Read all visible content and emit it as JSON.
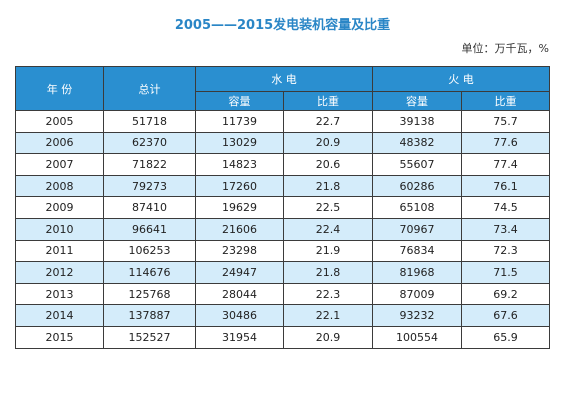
{
  "title": "2005——2015发电装机容量及比重",
  "unit": "单位：万千瓦，%",
  "header": {
    "year": "年 份",
    "total": "总计",
    "hydro": "水 电",
    "thermal": "火 电",
    "capacity": "容量",
    "ratio": "比重"
  },
  "rows": [
    {
      "year": "2005",
      "total": "51718",
      "hydro_cap": "11739",
      "hydro_ratio": "22.7",
      "thermal_cap": "39138",
      "thermal_ratio": "75.7"
    },
    {
      "year": "2006",
      "total": "62370",
      "hydro_cap": "13029",
      "hydro_ratio": "20.9",
      "thermal_cap": "48382",
      "thermal_ratio": "77.6"
    },
    {
      "year": "2007",
      "total": "71822",
      "hydro_cap": "14823",
      "hydro_ratio": "20.6",
      "thermal_cap": "55607",
      "thermal_ratio": "77.4"
    },
    {
      "year": "2008",
      "total": "79273",
      "hydro_cap": "17260",
      "hydro_ratio": "21.8",
      "thermal_cap": "60286",
      "thermal_ratio": "76.1"
    },
    {
      "year": "2009",
      "total": "87410",
      "hydro_cap": "19629",
      "hydro_ratio": "22.5",
      "thermal_cap": "65108",
      "thermal_ratio": "74.5"
    },
    {
      "year": "2010",
      "total": "96641",
      "hydro_cap": "21606",
      "hydro_ratio": "22.4",
      "thermal_cap": "70967",
      "thermal_ratio": "73.4"
    },
    {
      "year": "2011",
      "total": "106253",
      "hydro_cap": "23298",
      "hydro_ratio": "21.9",
      "thermal_cap": "76834",
      "thermal_ratio": "72.3"
    },
    {
      "year": "2012",
      "total": "114676",
      "hydro_cap": "24947",
      "hydro_ratio": "21.8",
      "thermal_cap": "81968",
      "thermal_ratio": "71.5"
    },
    {
      "year": "2013",
      "total": "125768",
      "hydro_cap": "28044",
      "hydro_ratio": "22.3",
      "thermal_cap": "87009",
      "thermal_ratio": "69.2"
    },
    {
      "year": "2014",
      "total": "137887",
      "hydro_cap": "30486",
      "hydro_ratio": "22.1",
      "thermal_cap": "93232",
      "thermal_ratio": "67.6"
    },
    {
      "year": "2015",
      "total": "152527",
      "hydro_cap": "31954",
      "hydro_ratio": "20.9",
      "thermal_cap": "100554",
      "thermal_ratio": "65.9"
    }
  ],
  "colors": {
    "title": "#2a86c6",
    "header_bg": "#2a8fd0",
    "alt_row_bg": "#d4ecfa",
    "border": "#3b3b3b"
  }
}
